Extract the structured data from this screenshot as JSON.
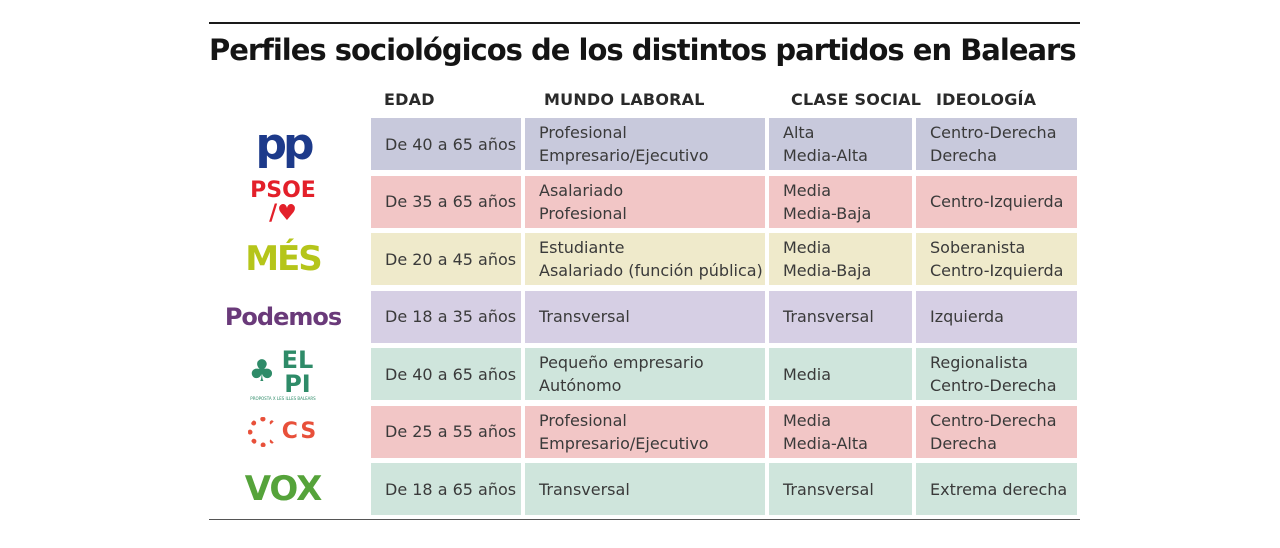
{
  "title": "Perfiles sociológicos de los distintos partidos en Balears",
  "headers": [
    "EDAD",
    "MUNDO LABORAL",
    "CLASE SOCIAL",
    "IDEOLOGÍA"
  ],
  "rows": [
    {
      "party": "PP",
      "logo_text": "pp",
      "color": "#c8c9dc",
      "edad": "De 40 a 65 años",
      "laboral": [
        "Profesional",
        "Empresario/Ejecutivo"
      ],
      "clase": [
        "Alta",
        "Media-Alta"
      ],
      "ideologia": [
        "Centro-Derecha",
        "Derecha"
      ]
    },
    {
      "party": "PSOE",
      "logo_text": "PSOE",
      "color": "#f2c6c6",
      "edad": "De 35 a 65 años",
      "laboral": [
        "Asalariado",
        "Profesional"
      ],
      "clase": [
        "Media",
        "Media-Baja"
      ],
      "ideologia": [
        "Centro-Izquierda"
      ]
    },
    {
      "party": "MÉS",
      "logo_text": "MÉS",
      "color": "#efeacb",
      "edad": "De 20 a 45 años",
      "laboral": [
        "Estudiante",
        "Asalariado (función pública)"
      ],
      "clase": [
        "Media",
        "Media-Baja"
      ],
      "ideologia": [
        "Soberanista",
        "Centro-Izquierda"
      ]
    },
    {
      "party": "Podemos",
      "logo_text": "Podemos",
      "color": "#d6cfe4",
      "edad": "De 18 a 35 años",
      "laboral": [
        "Transversal"
      ],
      "clase": [
        "Transversal"
      ],
      "ideologia": [
        "Izquierda"
      ]
    },
    {
      "party": "El Pi",
      "logo_text": "EL PI",
      "logo_small": "PROPOSTA X LES ILLES BALEARS",
      "color": "#cfe5dc",
      "edad": "De 40 a 65 años",
      "laboral": [
        "Pequeño empresario",
        "Autónomo"
      ],
      "clase": [
        "Media"
      ],
      "ideologia": [
        "Regionalista",
        "Centro-Derecha"
      ]
    },
    {
      "party": "Cs",
      "logo_text": "CS",
      "color": "#f2c6c6",
      "edad": "De 25 a 55 años",
      "laboral": [
        "Profesional",
        "Empresario/Ejecutivo"
      ],
      "clase": [
        "Media",
        "Media-Alta"
      ],
      "ideologia": [
        "Centro-Derecha",
        "Derecha"
      ]
    },
    {
      "party": "VOX",
      "logo_text": "VOX",
      "color": "#cfe5dc",
      "edad": "De 18 a 65 años",
      "laboral": [
        "Transversal"
      ],
      "clase": [
        "Transversal"
      ],
      "ideologia": [
        "Extrema derecha"
      ]
    }
  ],
  "logo_colors": {
    "pp": "#1d3a8a",
    "psoe": "#e3202a",
    "mes": "#b5c51a",
    "podemos": "#6a3a7a",
    "elpi": "#2e8b68",
    "cs": "#e8503a",
    "vox": "#55a33a"
  }
}
